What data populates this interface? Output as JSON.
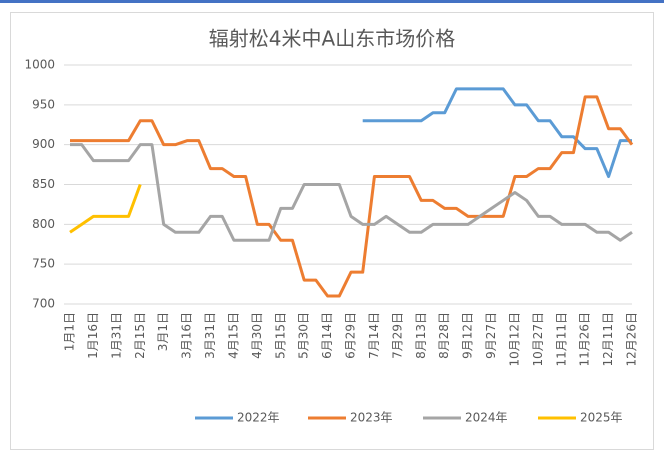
{
  "chart_data": {
    "type": "line",
    "title": "辐射松4米中A山东市场价格",
    "categories": [
      "1月1日",
      null,
      "1月16日",
      null,
      "1月31日",
      null,
      "2月15日",
      null,
      "3月1日",
      null,
      "3月16日",
      null,
      "3月31日",
      null,
      "4月15日",
      null,
      "4月30日",
      null,
      "5月15日",
      null,
      "5月30日",
      null,
      "6月14日",
      null,
      "6月29日",
      null,
      "7月14日",
      null,
      "7月29日",
      null,
      "8月13日",
      null,
      "8月28日",
      null,
      "9月12日",
      null,
      "9月27日",
      null,
      "10月12日",
      null,
      "10月27日",
      null,
      "11月11日",
      null,
      "11月26日",
      null,
      "12月11日",
      null,
      "12月26日"
    ],
    "series": [
      {
        "name": "2022年",
        "color": "#5b9bd5",
        "values": [
          null,
          null,
          null,
          null,
          null,
          null,
          null,
          null,
          null,
          null,
          null,
          null,
          null,
          null,
          null,
          null,
          null,
          null,
          null,
          null,
          null,
          null,
          null,
          null,
          null,
          930,
          930,
          930,
          930,
          930,
          930,
          940,
          940,
          970,
          970,
          970,
          970,
          970,
          950,
          950,
          930,
          930,
          910,
          910,
          895,
          895,
          860,
          905,
          905
        ]
      },
      {
        "name": "2023年",
        "color": "#ed7d31",
        "values": [
          905,
          905,
          905,
          905,
          905,
          905,
          930,
          930,
          900,
          900,
          905,
          905,
          870,
          870,
          860,
          860,
          800,
          800,
          780,
          780,
          730,
          730,
          710,
          710,
          740,
          740,
          860,
          860,
          860,
          860,
          830,
          830,
          820,
          820,
          810,
          810,
          810,
          810,
          860,
          860,
          870,
          870,
          890,
          890,
          960,
          960,
          920,
          920,
          900
        ]
      },
      {
        "name": "2024年",
        "color": "#a5a5a5",
        "values": [
          900,
          900,
          880,
          880,
          880,
          880,
          900,
          900,
          800,
          790,
          790,
          790,
          810,
          810,
          780,
          780,
          780,
          780,
          820,
          820,
          850,
          850,
          850,
          850,
          810,
          800,
          800,
          810,
          800,
          790,
          790,
          800,
          800,
          800,
          800,
          810,
          820,
          830,
          840,
          830,
          810,
          810,
          800,
          800,
          800,
          790,
          790,
          780,
          790
        ]
      },
      {
        "name": "2025年",
        "color": "#ffc000",
        "values": [
          790,
          800,
          810,
          810,
          810,
          810,
          850,
          null,
          null,
          null,
          null,
          null,
          null,
          null,
          null,
          null,
          null,
          null,
          null,
          null,
          null,
          null,
          null,
          null,
          null,
          null,
          null,
          null,
          null,
          null,
          null,
          null,
          null,
          null,
          null,
          null,
          null,
          null,
          null,
          null,
          null,
          null,
          null,
          null,
          null,
          null,
          null,
          null,
          null
        ]
      }
    ],
    "ylim": [
      700,
      1000
    ],
    "yticks": [
      700,
      750,
      800,
      850,
      900,
      950,
      1000
    ],
    "grid": true,
    "legend": "bottom"
  }
}
